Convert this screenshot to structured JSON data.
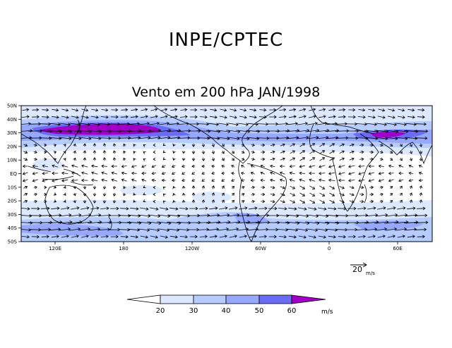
{
  "header": {
    "title": "INPE/CPTEC"
  },
  "plot": {
    "title": "Vento em 200 hPa JAN/1998",
    "lat_labels": [
      "50N",
      "40N",
      "30N",
      "20N",
      "10N",
      "EQ",
      "10S",
      "20S",
      "30S",
      "40S",
      "50S"
    ],
    "lon_labels": [
      "120E",
      "180",
      "120W",
      "60W",
      "0",
      "60E"
    ],
    "reference_vector": {
      "value": "20",
      "unit": "m/s"
    }
  },
  "colorbar": {
    "levels": [
      "20",
      "30",
      "40",
      "50",
      "60"
    ],
    "unit": "m/s",
    "colors": [
      "#ffffff",
      "#dbe8ff",
      "#b6cbff",
      "#96a8ff",
      "#6a6cf6",
      "#a000c8"
    ]
  },
  "palette": {
    "band_weak": "#dbe8ff",
    "band_mid": "#b6cbff",
    "band_strong": "#96a8ff",
    "band_stronger": "#6a6cf6",
    "jet_core": "#a000c8"
  }
}
